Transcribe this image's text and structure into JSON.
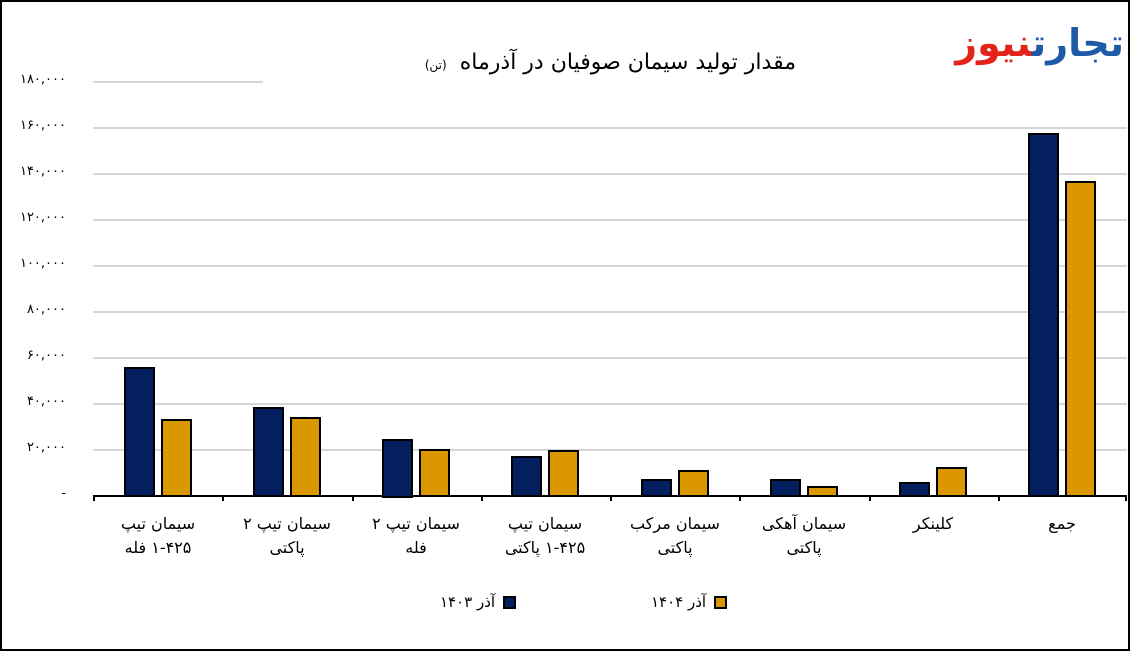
{
  "chart_data": {
    "type": "bar",
    "title": "مقدار تولید سیمان صوفیان در آذرماه",
    "unit": "(تن)",
    "xlabel": "",
    "ylabel": "",
    "ylim": [
      0,
      180000
    ],
    "grid": true,
    "legend_position": "bottom",
    "y_ticks": [
      "-",
      "۲۰,۰۰۰",
      "۴۰,۰۰۰",
      "۶۰,۰۰۰",
      "۸۰,۰۰۰",
      "۱۰۰,۰۰۰",
      "۱۲۰,۰۰۰",
      "۱۴۰,۰۰۰",
      "۱۶۰,۰۰۰",
      "۱۸۰,۰۰۰"
    ],
    "y_tick_values": [
      0,
      20000,
      40000,
      60000,
      80000,
      100000,
      120000,
      140000,
      160000,
      180000
    ],
    "categories": [
      "سیمان تیپ ۱-۴۲۵ فله",
      "سیمان تیپ ۲ پاکتی",
      "سیمان تیپ ۲ فله",
      "سیمان تیپ ۱-۴۲۵ پاکتی",
      "سیمان مرکب پاکتی",
      "سیمان آهکی پاکتی",
      "کلینکر",
      "جمع"
    ],
    "category_lines": [
      [
        "سیمان تیپ",
        "۱-۴۲۵ فله"
      ],
      [
        "سیمان تیپ ۲",
        "پاکتی"
      ],
      [
        "سیمان تیپ ۲",
        "فله"
      ],
      [
        "سیمان تیپ",
        "۱-۴۲۵ پاکتی"
      ],
      [
        "سیمان مرکب",
        "پاکتی"
      ],
      [
        "سیمان آهکی",
        "پاکتی"
      ],
      [
        "کلینکر",
        ""
      ],
      [
        "جمع",
        ""
      ]
    ],
    "series": [
      {
        "name": "آذر ۱۴۰۳",
        "color": "#031f5e",
        "values": [
          56000,
          38500,
          25000,
          17500,
          7500,
          7500,
          6000,
          158000
        ]
      },
      {
        "name": "آذر ۱۴۰۴",
        "color": "#da9700",
        "values": [
          33500,
          34500,
          20500,
          20000,
          11500,
          4500,
          12500,
          137000
        ]
      }
    ]
  },
  "logo": {
    "part1": "تجارت",
    "part2": "نیوز",
    "color1": "#1f5aa6",
    "color2": "#e2231a"
  }
}
